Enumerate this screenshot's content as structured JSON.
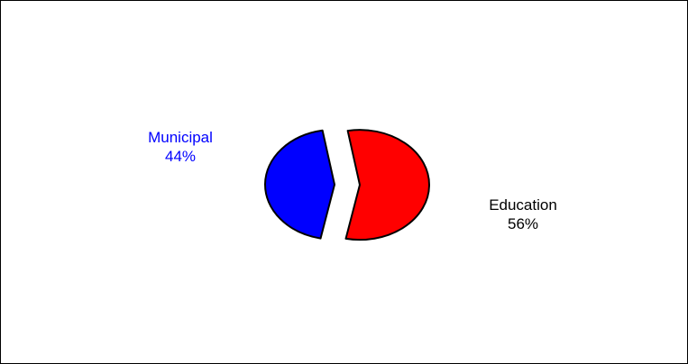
{
  "chart_data": {
    "type": "pie",
    "title": "",
    "slices": [
      {
        "label": "Education",
        "value": 56,
        "value_label": "56%",
        "color": "#ff0000",
        "label_color": "#000000",
        "exploded": true
      },
      {
        "label": "Municipal",
        "value": 44,
        "value_label": "44%",
        "color": "#0000ff",
        "label_color": "#0000ff",
        "exploded": true
      }
    ],
    "outline_color": "#000000"
  }
}
